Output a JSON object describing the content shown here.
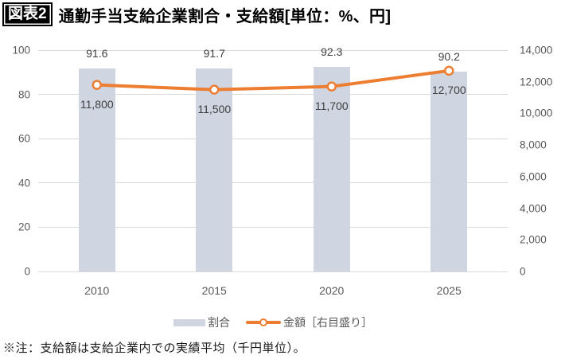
{
  "title": {
    "badge": "図表2",
    "text": "通勤手当支給企業割合・支給額[単位：%、円]"
  },
  "chart_data": {
    "type": "bar+line combo",
    "categories": [
      "2010",
      "2015",
      "2020",
      "2025"
    ],
    "series": [
      {
        "name": "割合",
        "type": "bar",
        "axis": "left",
        "values": [
          91.6,
          91.7,
          92.3,
          90.2
        ],
        "labels": [
          "91.6",
          "91.7",
          "92.3",
          "90.2"
        ],
        "color": "#cfd5e1"
      },
      {
        "name": "金額［右目盛り］",
        "type": "line",
        "axis": "right",
        "values": [
          11800,
          11500,
          11700,
          12700
        ],
        "labels": [
          "11,800",
          "11,500",
          "11,700",
          "12,700"
        ],
        "color": "#ed7d31"
      }
    ],
    "left_axis": {
      "min": 0,
      "max": 100,
      "tick_interval": 20,
      "ticks": [
        100,
        80,
        60,
        40,
        20,
        0
      ]
    },
    "right_axis": {
      "min": 0,
      "max": 14000,
      "tick_interval": 2000,
      "ticks": [
        "14,000",
        "12,000",
        "10,000",
        "8,000",
        "6,000",
        "4,000",
        "2,000",
        "0"
      ]
    },
    "grid": true,
    "legend_position": "bottom"
  },
  "legend": {
    "items": [
      {
        "label": "割合",
        "type": "bar"
      },
      {
        "label": "金額［右目盛り］",
        "type": "line"
      }
    ]
  },
  "note": "※注：支給額は支給企業内での実績平均（千円単位）。",
  "colors": {
    "bar": "#cfd5e1",
    "line": "#ed7d31",
    "marker_fill": "#ffffff",
    "grid": "#d9d9d9",
    "axis_text": "#595959",
    "data_label": "#404040",
    "badge_bg": "#000000",
    "badge_text": "#ffffff"
  }
}
